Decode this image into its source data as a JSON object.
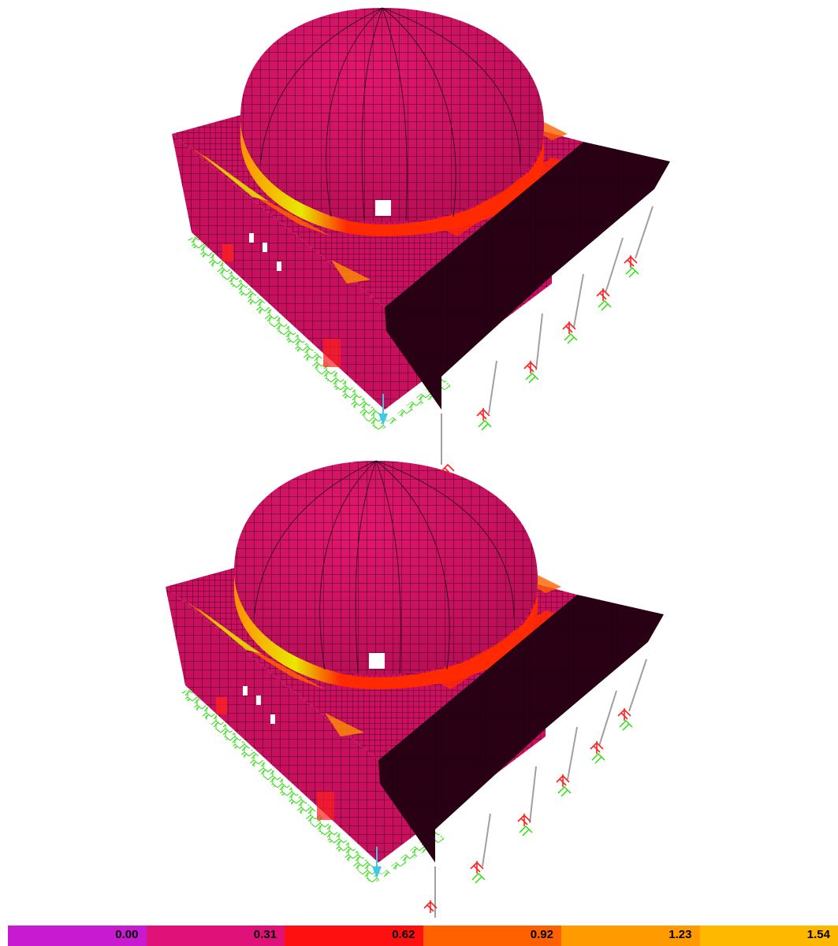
{
  "legend": {
    "colors": [
      "#c81ad0",
      "#e0127a",
      "#ff1010",
      "#ff6000",
      "#ff9a00",
      "#ffb800"
    ],
    "labels": [
      "0.00",
      "0.31",
      "0.62",
      "0.92",
      "1.23",
      "1.54"
    ]
  },
  "palette": {
    "body": "#c8105e",
    "mesh_line": "#1a0010",
    "support_green": "#22e000",
    "support_red": "#ff2020",
    "column": "#a0a0a0",
    "vault_dark": "#2a0014",
    "stress_red": "#ff2a00",
    "stress_orange": "#ff9000",
    "stress_yellow": "#e8e800",
    "axis_cyan": "#40c8e8"
  },
  "views": [
    {
      "name": "model-view-top"
    },
    {
      "name": "model-view-bottom"
    }
  ]
}
